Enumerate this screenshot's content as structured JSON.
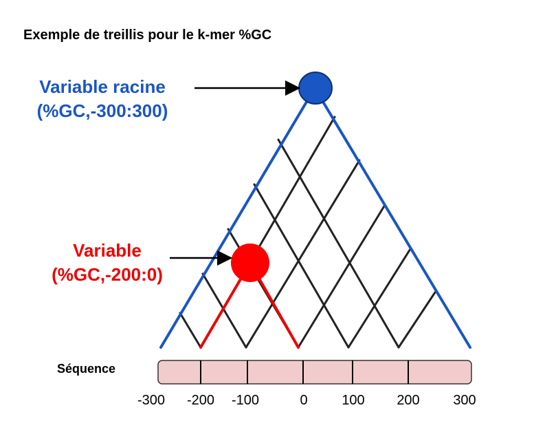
{
  "title": "Exemple de treillis pour le k-mer %GC",
  "root_variable": {
    "label_line1": "Variable racine",
    "label_line2": "(%GC,-300:300)",
    "color": "#1a56c4"
  },
  "child_variable": {
    "label_line1": "Variable",
    "label_line2": "(%GC,-200:0)",
    "color": "#ee0000"
  },
  "sequence": {
    "label": "Séquence",
    "fill_color": "#f2cccc",
    "ticks": [
      "-300",
      "-200",
      "-100",
      "0",
      "100",
      "200",
      "300"
    ]
  },
  "colors": {
    "lattice": "#222222",
    "outline": "#1a56c4",
    "arrow": "#000000"
  }
}
